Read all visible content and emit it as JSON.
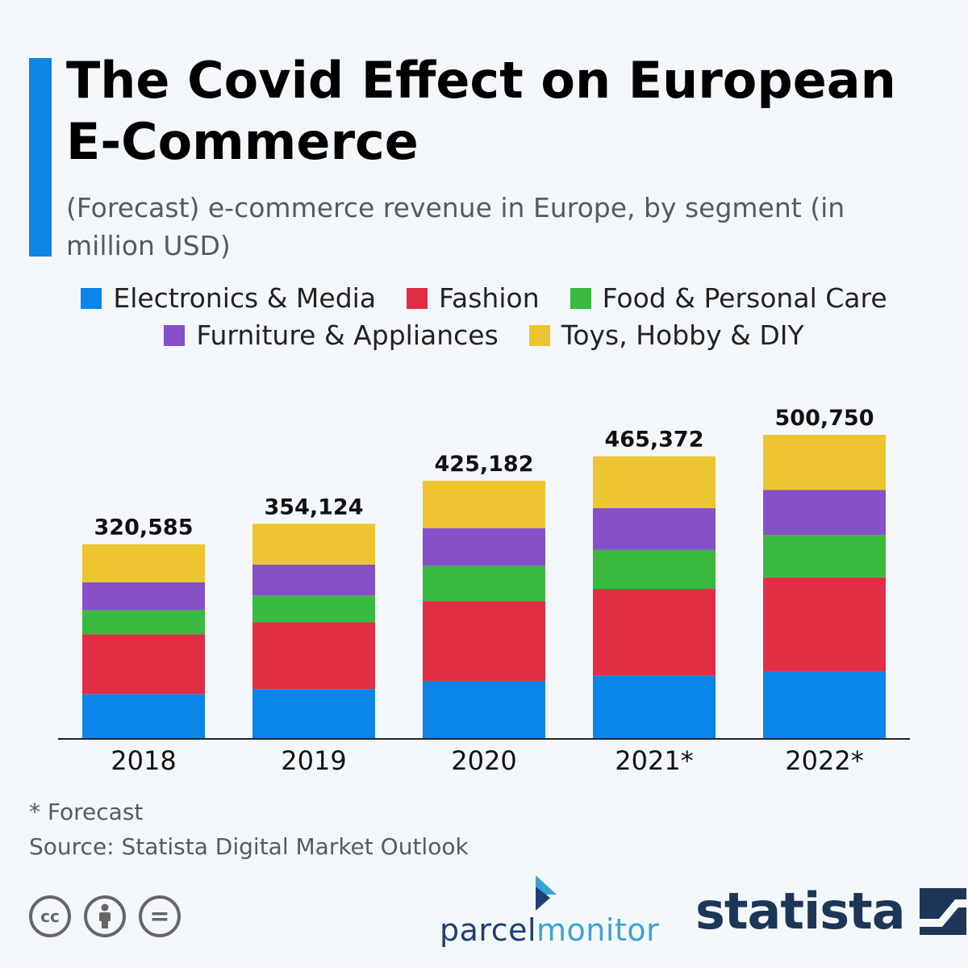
{
  "header": {
    "title": "The Covid Effect on European E-Commerce",
    "subtitle": "(Forecast) e-commerce revenue in Europe, by segment (in million USD)"
  },
  "colors": {
    "accent": "#0c85e8",
    "electronics": "#0c85e8",
    "fashion": "#e02f44",
    "food": "#39b93e",
    "furniture": "#8650c8",
    "toys": "#ecc530"
  },
  "legend": [
    {
      "label": "Electronics & Media",
      "color": "#0c85e8"
    },
    {
      "label": "Fashion",
      "color": "#e02f44"
    },
    {
      "label": "Food & Personal Care",
      "color": "#39b93e"
    },
    {
      "label": "Furniture & Appliances",
      "color": "#8650c8"
    },
    {
      "label": "Toys, Hobby & DIY",
      "color": "#ecc530"
    }
  ],
  "chart_data": {
    "type": "bar",
    "stacked": true,
    "categories": [
      "2018",
      "2019",
      "2020",
      "2021*",
      "2022*"
    ],
    "totals": [
      "320,585",
      "354,124",
      "425,182",
      "465,372",
      "500,750"
    ],
    "total_values": [
      320585,
      354124,
      425182,
      465372,
      500750
    ],
    "series": [
      {
        "name": "Electronics & Media",
        "color": "#0c85e8",
        "values": [
          74000,
          82000,
          95000,
          104000,
          111000
        ]
      },
      {
        "name": "Fashion",
        "color": "#e02f44",
        "values": [
          98000,
          110000,
          132000,
          143000,
          155000
        ]
      },
      {
        "name": "Food & Personal Care",
        "color": "#39b93e",
        "values": [
          40000,
          44000,
          58000,
          64000,
          70000
        ]
      },
      {
        "name": "Furniture & Appliances",
        "color": "#8650c8",
        "values": [
          46000,
          51000,
          62000,
          69000,
          74000
        ]
      },
      {
        "name": "Toys, Hobby & DIY",
        "color": "#ecc530",
        "values": [
          62585,
          67124,
          78182,
          85372,
          90750
        ]
      }
    ],
    "ylim": [
      0,
      500750
    ],
    "grid": false,
    "legend_position": "top"
  },
  "footer": {
    "footnote": "* Forecast",
    "source": "Source: Statista Digital Market Outlook",
    "license_icons": [
      "cc-icon",
      "by-icon",
      "nd-icon"
    ],
    "license_glyphs": {
      "cc": "cc",
      "nd": "="
    },
    "parcelmonitor": {
      "part1": "parcel",
      "part2": "monitor"
    },
    "statista": "statista"
  }
}
